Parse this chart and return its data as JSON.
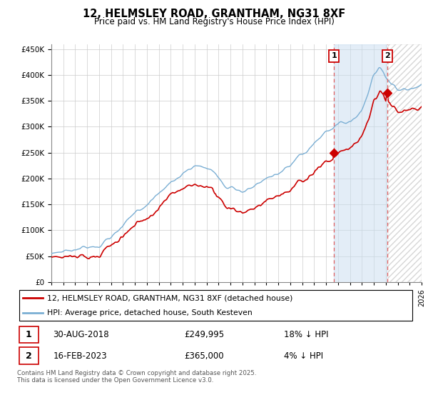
{
  "title": "12, HELMSLEY ROAD, GRANTHAM, NG31 8XF",
  "subtitle": "Price paid vs. HM Land Registry's House Price Index (HPI)",
  "hpi_label": "HPI: Average price, detached house, South Kesteven",
  "property_label": "12, HELMSLEY ROAD, GRANTHAM, NG31 8XF (detached house)",
  "annotation1": {
    "num": "1",
    "date": "30-AUG-2018",
    "price": "£249,995",
    "hpi": "18% ↓ HPI"
  },
  "annotation2": {
    "num": "2",
    "date": "16-FEB-2023",
    "price": "£365,000",
    "hpi": "4% ↓ HPI"
  },
  "footer": "Contains HM Land Registry data © Crown copyright and database right 2025.\nThis data is licensed under the Open Government Licence v3.0.",
  "hpi_color": "#7bafd4",
  "property_color": "#cc0000",
  "annotation_color": "#cc0000",
  "shade_color": "#c8ddf0",
  "hatch_color": "#c8c8c8",
  "background_color": "#ffffff",
  "grid_color": "#cccccc",
  "ylim": [
    0,
    460000
  ],
  "yticks": [
    0,
    50000,
    100000,
    150000,
    200000,
    250000,
    300000,
    350000,
    400000,
    450000
  ],
  "x_start_year": 1995,
  "x_end_year": 2026,
  "sale1_year": 2018.66,
  "sale2_year": 2023.12,
  "sale1_price": 249995,
  "sale2_price": 365000
}
